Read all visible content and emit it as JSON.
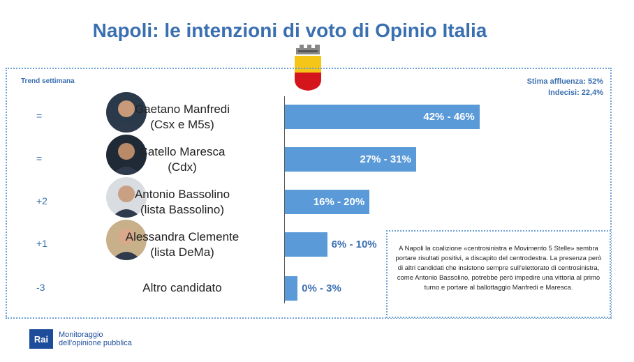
{
  "title": "Napoli: le intenzioni di voto di Opinio Italia",
  "trend_heading": "Trend settimana",
  "stima": {
    "affluenza": "Stima affluenza: 52%",
    "indecisi": "Indecisi: 22,4%"
  },
  "colors": {
    "accent": "#3a6fb0",
    "bar": "#5a9ad8",
    "brand": "#1d4c9a"
  },
  "candidates": [
    {
      "name": "Gaetano Manfredi",
      "list": "(Csx e M5s)",
      "trend": "=",
      "range_label": "42% - 46%",
      "range": [
        42,
        46
      ],
      "avatar": "person-photo"
    },
    {
      "name": "Catello Maresca",
      "list": "(Cdx)",
      "trend": "=",
      "range_label": "27% - 31%",
      "range": [
        27,
        31
      ],
      "avatar": "person-photo"
    },
    {
      "name": "Antonio Bassolino",
      "list": "(lista Bassolino)",
      "trend": "+2",
      "range_label": "16% - 20%",
      "range": [
        16,
        20
      ],
      "avatar": "person-photo"
    },
    {
      "name": "Alessandra Clemente",
      "list": "(lista DeMa)",
      "trend": "+1",
      "range_label": "6% - 10%",
      "range": [
        6,
        10
      ],
      "avatar": "person-photo"
    },
    {
      "name": "Altro candidato",
      "list": "",
      "trend": "-3",
      "range_label": "0% - 3%",
      "range": [
        0,
        3
      ],
      "avatar": ""
    }
  ],
  "chart_data": {
    "type": "bar",
    "orientation": "horizontal",
    "title": "Napoli: le intenzioni di voto di Opinio Italia",
    "categories": [
      "Gaetano Manfredi",
      "Catello Maresca",
      "Antonio Bassolino",
      "Alessandra Clemente",
      "Altro candidato"
    ],
    "values": [
      46,
      31,
      20,
      10,
      3
    ],
    "ranges": [
      [
        42,
        46
      ],
      [
        27,
        31
      ],
      [
        16,
        20
      ],
      [
        6,
        10
      ],
      [
        0,
        3
      ]
    ],
    "data_labels": [
      "42% - 46%",
      "27% - 31%",
      "16% - 20%",
      "6% - 10%",
      "0% - 3%"
    ],
    "trend": [
      "=",
      "=",
      "+2",
      "+1",
      "-3"
    ]
  },
  "note": "A Napoli la coalizione «centrosinistra e Movimento 5 Stelle» sembra portare risultati positivi, a discapito del centrodestra. La presenza però di altri candidati che insistono sempre sull'elettorato di centrosinistra, come Antonio Bassolino, potrebbe però impedire una vittoria al primo turno e portare al ballottaggio Manfredi e Maresca.",
  "footer": {
    "logo": "Rai",
    "line1": "Monitoraggio",
    "line2": "dell'opinione pubblica"
  }
}
